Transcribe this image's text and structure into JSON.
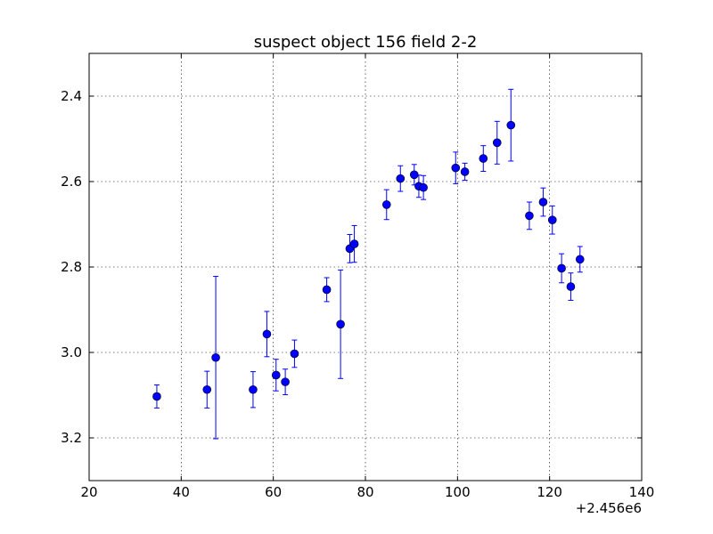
{
  "chart_data": {
    "type": "scatter",
    "title": "suspect object 156 field 2-2",
    "xlabel": "",
    "ylabel": "",
    "x_offset_label": "+2.456e6",
    "xlim": [
      20,
      140
    ],
    "ylim": [
      3.3,
      2.3
    ],
    "y_inverted": true,
    "xticks": [
      20,
      40,
      60,
      80,
      100,
      120,
      140
    ],
    "xtick_labels": [
      "20",
      "40",
      "60",
      "80",
      "100",
      "120",
      "140"
    ],
    "yticks": [
      2.4,
      2.6,
      2.8,
      3.0,
      3.2
    ],
    "ytick_labels": [
      "2.4",
      "2.6",
      "2.8",
      "3.0",
      "3.2"
    ],
    "grid": true,
    "marker_color": "#0000ff",
    "series": [
      {
        "points": [
          {
            "x": 34.7,
            "y": 3.103,
            "err": 0.027
          },
          {
            "x": 45.6,
            "y": 3.087,
            "err": 0.043
          },
          {
            "x": 47.5,
            "y": 3.012,
            "err": 0.19
          },
          {
            "x": 55.6,
            "y": 3.087,
            "err": 0.042
          },
          {
            "x": 58.6,
            "y": 2.957,
            "err": 0.053
          },
          {
            "x": 60.6,
            "y": 3.053,
            "err": 0.037
          },
          {
            "x": 62.6,
            "y": 3.069,
            "err": 0.03
          },
          {
            "x": 64.6,
            "y": 3.003,
            "err": 0.032
          },
          {
            "x": 71.6,
            "y": 2.853,
            "err": 0.028
          },
          {
            "x": 74.6,
            "y": 2.934,
            "err": 0.127
          },
          {
            "x": 76.6,
            "y": 2.757,
            "err": 0.033
          },
          {
            "x": 77.6,
            "y": 2.746,
            "err": 0.043
          },
          {
            "x": 84.6,
            "y": 2.654,
            "err": 0.035
          },
          {
            "x": 87.6,
            "y": 2.593,
            "err": 0.03
          },
          {
            "x": 90.6,
            "y": 2.584,
            "err": 0.024
          },
          {
            "x": 91.6,
            "y": 2.611,
            "err": 0.026
          },
          {
            "x": 92.6,
            "y": 2.614,
            "err": 0.028
          },
          {
            "x": 99.6,
            "y": 2.568,
            "err": 0.037
          },
          {
            "x": 101.6,
            "y": 2.577,
            "err": 0.02
          },
          {
            "x": 105.6,
            "y": 2.546,
            "err": 0.03
          },
          {
            "x": 108.6,
            "y": 2.509,
            "err": 0.05
          },
          {
            "x": 111.6,
            "y": 2.468,
            "err": 0.084
          },
          {
            "x": 115.6,
            "y": 2.68,
            "err": 0.032
          },
          {
            "x": 118.6,
            "y": 2.648,
            "err": 0.033
          },
          {
            "x": 120.6,
            "y": 2.69,
            "err": 0.033
          },
          {
            "x": 122.6,
            "y": 2.803,
            "err": 0.034
          },
          {
            "x": 124.6,
            "y": 2.846,
            "err": 0.032
          },
          {
            "x": 126.6,
            "y": 2.782,
            "err": 0.03
          }
        ]
      }
    ]
  }
}
